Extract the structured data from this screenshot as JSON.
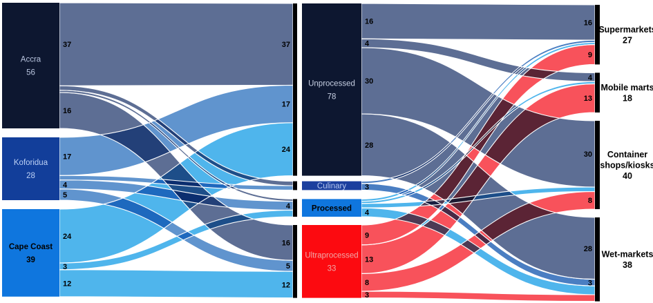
{
  "chart_data": {
    "type": "sankey",
    "description": "Flows from three Ghanaian cities through food processing categories to retail outlet types",
    "nodes": [
      {
        "id": "accra",
        "label_lines": [
          "Accra"
        ],
        "display_value": "56",
        "column": 0,
        "node_color": "#0d1730",
        "flow_color": "#5d6e94",
        "text_color": "#b7c3dd"
      },
      {
        "id": "koforidua",
        "label_lines": [
          "Koforidua"
        ],
        "display_value": "28",
        "column": 0,
        "node_color": "#123e9a",
        "flow_color": "#6094ce",
        "text_color": "#bdd1f5"
      },
      {
        "id": "cape-coast",
        "label_lines": [
          "Cape Coast"
        ],
        "display_value": "39",
        "column": 0,
        "node_color": "#0f76de",
        "flow_color": "#4fb5ec",
        "text_color": "#000000"
      },
      {
        "id": "unprocessed",
        "label_lines": [
          "Unprocessed"
        ],
        "display_value": "78",
        "column": 1,
        "node_color": "#0d1730",
        "flow_color": "#5d6e94",
        "text_color": "#c8d1e4"
      },
      {
        "id": "culinary",
        "label_lines": [
          "Culinary"
        ],
        "column": 1,
        "node_color": "#1b3f9e",
        "flow_color": "#4a7ec2",
        "text_color": "#b8c9f0"
      },
      {
        "id": "processed",
        "label_lines": [
          "Processed"
        ],
        "column": 1,
        "node_color": "#0f76de",
        "flow_color": "#4fb5ec",
        "text_color": "#000000"
      },
      {
        "id": "ultraprocessed",
        "label_lines": [
          "Ultraprocessed"
        ],
        "display_value": "33",
        "column": 1,
        "node_color": "#fc0a10",
        "flow_color": "#f8525b",
        "text_color": "#f0a8a8"
      },
      {
        "id": "supermarkets",
        "label_lines": [
          "Supermarkets"
        ],
        "display_value": "27",
        "column": 2,
        "node_color": "#000000",
        "text_color": "#000000"
      },
      {
        "id": "mobile-marts",
        "label_lines": [
          "Mobile marts"
        ],
        "display_value": "18",
        "column": 2,
        "node_color": "#000000",
        "text_color": "#000000"
      },
      {
        "id": "container-shops",
        "label_lines": [
          "Container",
          "shops/kiosks"
        ],
        "display_value": "40",
        "column": 2,
        "node_color": "#000000",
        "text_color": "#000000"
      },
      {
        "id": "wet-markets",
        "label_lines": [
          "Wet-markets"
        ],
        "display_value": "38",
        "column": 2,
        "node_color": "#000000",
        "text_color": "#000000"
      }
    ],
    "links": [
      {
        "source": "accra",
        "target": "unprocessed",
        "value": 37,
        "start_label": "37",
        "end_label": "37"
      },
      {
        "source": "accra",
        "target": "culinary",
        "value": 2
      },
      {
        "source": "accra",
        "target": "processed",
        "value": 1
      },
      {
        "source": "accra",
        "target": "ultraprocessed",
        "value": 16,
        "start_label": "16",
        "end_label": "16"
      },
      {
        "source": "koforidua",
        "target": "unprocessed",
        "value": 17,
        "start_label": "17",
        "end_label": "17"
      },
      {
        "source": "koforidua",
        "target": "culinary",
        "value": 2
      },
      {
        "source": "koforidua",
        "target": "processed",
        "value": 4,
        "start_label": "4",
        "end_label": "4"
      },
      {
        "source": "koforidua",
        "target": "ultraprocessed",
        "value": 5,
        "start_label": "5",
        "end_label": "5"
      },
      {
        "source": "cape-coast",
        "target": "unprocessed",
        "value": 24,
        "start_label": "24",
        "end_label": "24"
      },
      {
        "source": "cape-coast",
        "target": "processed",
        "value": 3,
        "start_label": "3"
      },
      {
        "source": "cape-coast",
        "target": "ultraprocessed",
        "value": 12,
        "start_label": "12",
        "end_label": "12"
      },
      {
        "source": "unprocessed",
        "target": "supermarkets",
        "value": 16,
        "start_label": "16",
        "end_label": "16"
      },
      {
        "source": "unprocessed",
        "target": "mobile-marts",
        "value": 4,
        "start_label": "4",
        "end_label": "4"
      },
      {
        "source": "unprocessed",
        "target": "container-shops",
        "value": 30,
        "start_label": "30",
        "end_label": "30"
      },
      {
        "source": "unprocessed",
        "target": "wet-markets",
        "value": 28,
        "start_label": "28",
        "end_label": "28"
      },
      {
        "source": "culinary",
        "target": "supermarkets",
        "value": 1
      },
      {
        "source": "culinary",
        "target": "wet-markets",
        "value": 3,
        "start_label": "3",
        "end_label": "3"
      },
      {
        "source": "processed",
        "target": "supermarkets",
        "value": 1
      },
      {
        "source": "processed",
        "target": "mobile-marts",
        "value": 1
      },
      {
        "source": "processed",
        "target": "container-shops",
        "value": 2
      },
      {
        "source": "processed",
        "target": "wet-markets",
        "value": 4,
        "start_label": "4"
      },
      {
        "source": "ultraprocessed",
        "target": "supermarkets",
        "value": 9,
        "start_label": "9",
        "end_label": "9"
      },
      {
        "source": "ultraprocessed",
        "target": "mobile-marts",
        "value": 13,
        "start_label": "13",
        "end_label": "13"
      },
      {
        "source": "ultraprocessed",
        "target": "container-shops",
        "value": 8,
        "start_label": "8",
        "end_label": "8"
      },
      {
        "source": "ultraprocessed",
        "target": "wet-markets",
        "value": 3,
        "start_label": "3"
      }
    ]
  },
  "colors": {
    "background": "#ffffff",
    "terminal_bar": "#000000",
    "flow_label": "#000000"
  }
}
